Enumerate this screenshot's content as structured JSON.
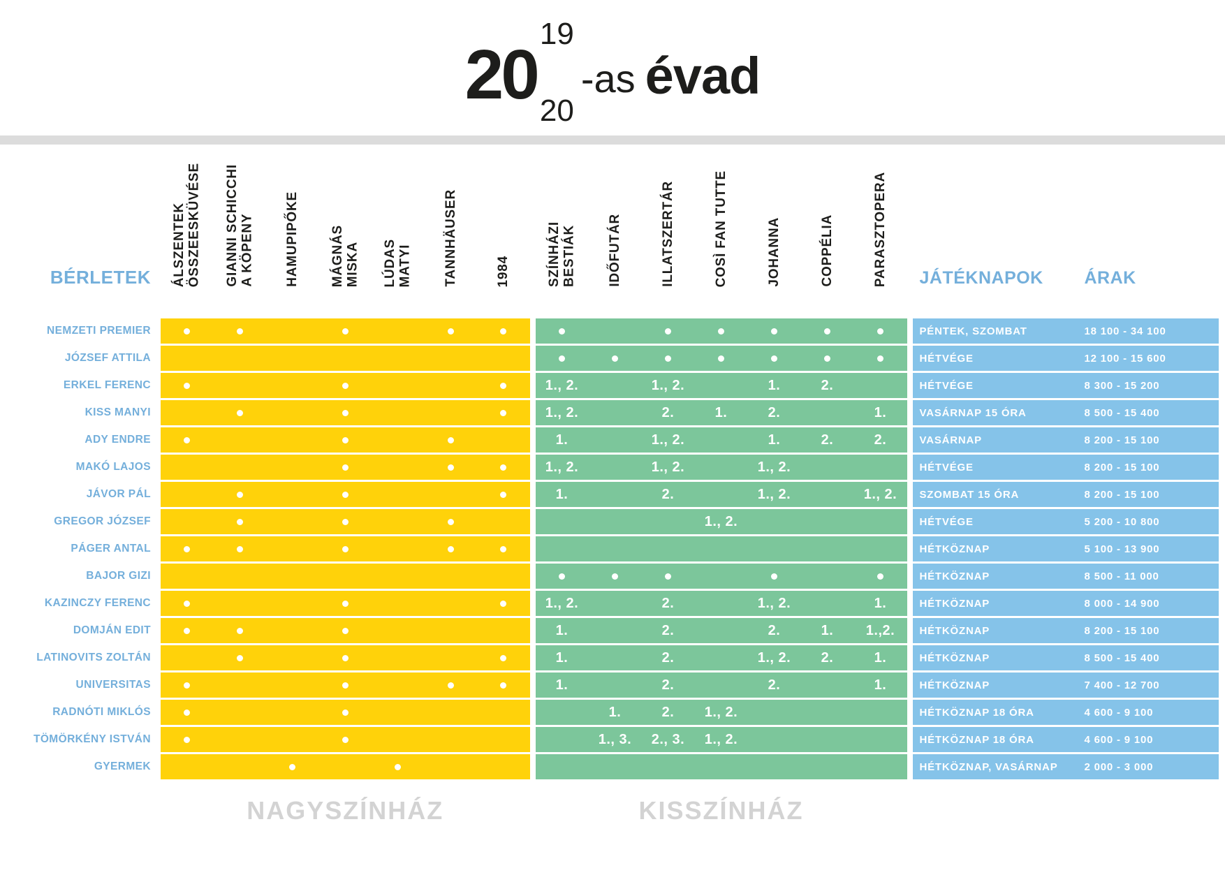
{
  "title": {
    "big": "20",
    "sup": "19",
    "sub": "20",
    "suffix": "-as",
    "word": "évad"
  },
  "colors": {
    "yellow": "#ffd20a",
    "green": "#7cc69b",
    "blue": "#85c3e9",
    "bluetext": "#74afdb",
    "divider": "#dcdcdc",
    "gray": "#d3d3d3"
  },
  "table": {
    "berletek_label": "BÉRLETEK",
    "jateknapok_label": "JÁTÉKNAPOK",
    "arak_label": "ÁRAK",
    "nagyszinhaz_label": "NAGYSZÍNHÁZ",
    "kisszinhaz_label": "KISSZÍNHÁZ",
    "nagyszinhaz_columns": [
      [
        "ÁLSZENTEK",
        "ÖSSZEESKÜVÉSE"
      ],
      [
        "GIANNI SCHICCHI",
        "A KÖPENY"
      ],
      [
        "HAMUPIPŐKE"
      ],
      [
        "MÁGNÁS",
        "MISKA"
      ],
      [
        "LÚDAS",
        "MATYI"
      ],
      [
        "TANNHÄUSER"
      ],
      [
        "1984"
      ]
    ],
    "kisszinhaz_columns": [
      [
        "SZÍNHÁZI",
        "BESTIÁK"
      ],
      [
        "IDŐFUTÁR"
      ],
      [
        "ILLATSZERTÁR"
      ],
      [
        "COSÌ FAN TUTTE"
      ],
      [
        "JOHANNA"
      ],
      [
        "COPPÉLIA"
      ],
      [
        "PARASZTOPERA"
      ]
    ],
    "rows": [
      {
        "name": "NEMZETI PREMIER",
        "nagyszinhaz": [
          "•",
          "•",
          "",
          "•",
          "",
          "•",
          "•"
        ],
        "kisszinhaz": [
          "•",
          "",
          "•",
          "•",
          "•",
          "•",
          "•"
        ],
        "merged": "",
        "days": "PÉNTEK, SZOMBAT",
        "prices": "18 100 - 34 100"
      },
      {
        "name": "JÓZSEF ATTILA",
        "nagyszinhaz": [
          "",
          "",
          "",
          "",
          "",
          "",
          ""
        ],
        "kisszinhaz": [
          "•",
          "•",
          "•",
          "•",
          "•",
          "•",
          "•"
        ],
        "merged": "",
        "days": "HÉTVÉGE",
        "prices": "12 100 - 15 600"
      },
      {
        "name": "ERKEL FERENC",
        "nagyszinhaz": [
          "•",
          "",
          "",
          "•",
          "",
          "",
          "•"
        ],
        "kisszinhaz": [
          "1., 2.",
          "",
          "1., 2.",
          "",
          "1.",
          "2.",
          ""
        ],
        "merged": "",
        "days": "HÉTVÉGE",
        "prices": "8 300 - 15 200"
      },
      {
        "name": "KISS MANYI",
        "nagyszinhaz": [
          "",
          "•",
          "",
          "•",
          "",
          "",
          "•"
        ],
        "kisszinhaz": [
          "1., 2.",
          "",
          "2.",
          "1.",
          "2.",
          "",
          "1."
        ],
        "merged": "",
        "days": "VASÁRNAP 15 ÓRA",
        "prices": "8 500 - 15 400"
      },
      {
        "name": "ADY ENDRE",
        "nagyszinhaz": [
          "•",
          "",
          "",
          "•",
          "",
          "•",
          ""
        ],
        "kisszinhaz": [
          "1.",
          "",
          "1., 2.",
          "",
          "1.",
          "2.",
          "2."
        ],
        "merged": "",
        "days": "VASÁRNAP",
        "prices": "8 200 - 15 100"
      },
      {
        "name": "MAKÓ LAJOS",
        "nagyszinhaz": [
          "",
          "",
          "",
          "•",
          "",
          "•",
          "•"
        ],
        "kisszinhaz": [
          "1., 2.",
          "",
          "1., 2.",
          "",
          "1., 2.",
          "",
          ""
        ],
        "merged": "",
        "days": "HÉTVÉGE",
        "prices": "8 200 - 15 100"
      },
      {
        "name": "JÁVOR PÁL",
        "nagyszinhaz": [
          "",
          "•",
          "",
          "•",
          "",
          "",
          "•"
        ],
        "kisszinhaz": [
          "1.",
          "",
          "2.",
          "",
          "1., 2.",
          "",
          "1., 2."
        ],
        "merged": "",
        "days": "SZOMBAT 15 ÓRA",
        "prices": "8 200 - 15 100"
      },
      {
        "name": "GREGOR JÓZSEF",
        "nagyszinhaz": [
          "",
          "•",
          "",
          "•",
          "",
          "•",
          ""
        ],
        "kisszinhaz": [],
        "merged": "1., 2.",
        "days": "HÉTVÉGE",
        "prices": "5 200 - 10 800"
      },
      {
        "name": "PÁGER ANTAL",
        "nagyszinhaz": [
          "•",
          "•",
          "",
          "•",
          "",
          "•",
          "•"
        ],
        "kisszinhaz": [
          "",
          "",
          "",
          "",
          "",
          "",
          ""
        ],
        "merged": "",
        "days": "HÉTKÖZNAP",
        "prices": "5 100 - 13 900"
      },
      {
        "name": "BAJOR GIZI",
        "nagyszinhaz": [
          "",
          "",
          "",
          "",
          "",
          "",
          ""
        ],
        "kisszinhaz": [
          "•",
          "•",
          "•",
          "",
          "•",
          "",
          "•"
        ],
        "merged": "",
        "days": "HÉTKÖZNAP",
        "prices": "8 500 - 11 000"
      },
      {
        "name": "KAZINCZY FERENC",
        "nagyszinhaz": [
          "•",
          "",
          "",
          "•",
          "",
          "",
          "•"
        ],
        "kisszinhaz": [
          "1., 2.",
          "",
          "2.",
          "",
          "1., 2.",
          "",
          "1."
        ],
        "merged": "",
        "days": "HÉTKÖZNAP",
        "prices": "8 000 - 14 900"
      },
      {
        "name": "DOMJÁN EDIT",
        "nagyszinhaz": [
          "•",
          "•",
          "",
          "•",
          "",
          "",
          ""
        ],
        "kisszinhaz": [
          "1.",
          "",
          "2.",
          "",
          "2.",
          "1.",
          "1.,2."
        ],
        "merged": "",
        "days": "HÉTKÖZNAP",
        "prices": "8 200 - 15 100"
      },
      {
        "name": "LATINOVITS ZOLTÁN",
        "nagyszinhaz": [
          "",
          "•",
          "",
          "•",
          "",
          "",
          "•"
        ],
        "kisszinhaz": [
          "1.",
          "",
          "2.",
          "",
          "1., 2.",
          "2.",
          "1."
        ],
        "merged": "",
        "days": "HÉTKÖZNAP",
        "prices": "8 500 - 15 400"
      },
      {
        "name": "UNIVERSITAS",
        "nagyszinhaz": [
          "•",
          "",
          "",
          "•",
          "",
          "•",
          "•"
        ],
        "kisszinhaz": [
          "1.",
          "",
          "2.",
          "",
          "2.",
          "",
          "1."
        ],
        "merged": "",
        "days": "HÉTKÖZNAP",
        "prices": "7 400 - 12 700"
      },
      {
        "name": "RADNÓTI MIKLÓS",
        "nagyszinhaz": [
          "•",
          "",
          "",
          "•",
          "",
          "",
          ""
        ],
        "kisszinhaz": [
          "",
          "1.",
          "2.",
          "1., 2.",
          "",
          "",
          ""
        ],
        "merged": "",
        "days": "HÉTKÖZNAP 18 ÓRA",
        "prices": "4 600 - 9 100"
      },
      {
        "name": "TÖMÖRKÉNY ISTVÁN",
        "nagyszinhaz": [
          "•",
          "",
          "",
          "•",
          "",
          "",
          ""
        ],
        "kisszinhaz": [
          "",
          "1., 3.",
          "2., 3.",
          "1., 2.",
          "",
          "",
          ""
        ],
        "merged": "",
        "days": "HÉTKÖZNAP 18 ÓRA",
        "prices": "4 600 - 9 100"
      },
      {
        "name": "GYERMEK",
        "nagyszinhaz": [
          "",
          "",
          "•",
          "",
          "•",
          "",
          ""
        ],
        "kisszinhaz": [
          "",
          "",
          "",
          "",
          "",
          "",
          ""
        ],
        "merged": "",
        "days": "HÉTKÖZNAP, VASÁRNAP",
        "prices": "2 000 - 3 000"
      }
    ]
  }
}
